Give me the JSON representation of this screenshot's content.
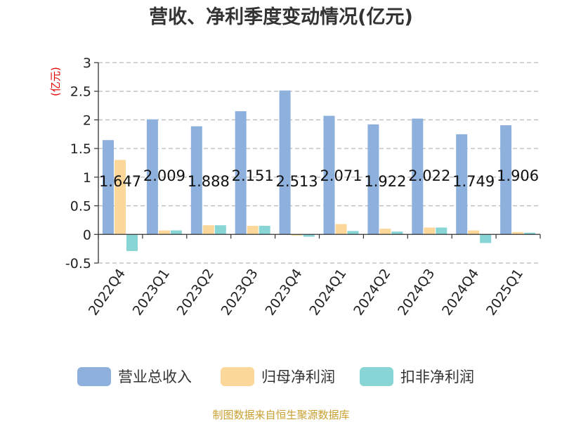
{
  "chart_data": {
    "type": "bar",
    "title": "营收、净利季度变动情况(亿元)",
    "unit_label": "(亿元)",
    "categories": [
      "2022Q4",
      "2023Q1",
      "2023Q2",
      "2023Q3",
      "2023Q4",
      "2024Q1",
      "2024Q2",
      "2024Q3",
      "2024Q4",
      "2025Q1"
    ],
    "series": [
      {
        "name": "营业总收入",
        "color": "#8eb0dc",
        "values": [
          1.647,
          2.009,
          1.888,
          2.151,
          2.513,
          2.071,
          1.922,
          2.022,
          1.749,
          1.906
        ]
      },
      {
        "name": "归母净利润",
        "color": "#fcd79a",
        "values": [
          1.3,
          0.07,
          0.16,
          0.15,
          -0.02,
          0.18,
          0.1,
          0.12,
          0.07,
          0.04
        ]
      },
      {
        "name": "扣非净利润",
        "color": "#88d5d6",
        "values": [
          -0.29,
          0.07,
          0.16,
          0.15,
          -0.04,
          0.06,
          0.05,
          0.12,
          -0.15,
          0.03
        ]
      }
    ],
    "data_labels": [
      "1.647",
      "2.009",
      "1.888",
      "2.151",
      "2.513",
      "2.071",
      "1.922",
      "2.022",
      "1.749",
      "1.906"
    ],
    "yticks": [
      "3",
      "2.5",
      "2",
      "1.5",
      "1",
      "0.5",
      "0",
      "-0.5"
    ],
    "ylim": [
      -0.5,
      3
    ],
    "grid": true,
    "legend_position": "bottom"
  },
  "source_text": "制图数据来自恒生聚源数据库"
}
